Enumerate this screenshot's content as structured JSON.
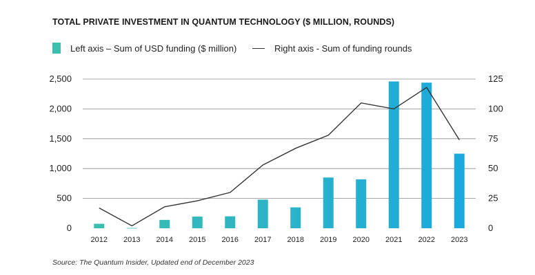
{
  "title": "TOTAL PRIVATE INVESTMENT IN QUANTUM TECHNOLOGY ($ MILLION, ROUNDS)",
  "source": "Source: The Quantum Insider, Updated end of December 2023",
  "legend": {
    "bars_label": "Left axis – Sum of USD funding ($ million)",
    "line_label": "Right axis - Sum of funding rounds"
  },
  "colors": {
    "bar_start": "#3cbfae",
    "bar_end": "#1aa8e0",
    "line": "#333333",
    "grid": "#8a8a8a"
  },
  "chart_data": {
    "type": "bar",
    "categories": [
      "2012",
      "2013",
      "2014",
      "2015",
      "2016",
      "2017",
      "2018",
      "2019",
      "2020",
      "2021",
      "2022",
      "2023"
    ],
    "series": [
      {
        "name": "Left axis – Sum of USD funding ($ million)",
        "axis": "left",
        "type": "bar",
        "values": [
          75,
          5,
          140,
          195,
          200,
          480,
          350,
          850,
          820,
          2460,
          2440,
          1250
        ]
      },
      {
        "name": "Right axis - Sum of funding rounds",
        "axis": "right",
        "type": "line",
        "values": [
          17,
          2,
          18,
          23,
          30,
          53,
          67,
          78,
          105,
          100,
          118,
          74
        ]
      }
    ],
    "left_axis": {
      "ylim": [
        0,
        2500
      ],
      "ticks": [
        0,
        500,
        1000,
        1500,
        2000,
        2500
      ],
      "tick_labels": [
        "0",
        "500",
        "1,000",
        "1,500",
        "2,000",
        "2,500"
      ]
    },
    "right_axis": {
      "ylim": [
        0,
        125
      ],
      "ticks": [
        0,
        25,
        50,
        75,
        100,
        125
      ],
      "tick_labels": [
        "0",
        "25",
        "50",
        "75",
        "100",
        "125"
      ]
    },
    "grid": true,
    "legend_position": "top-left"
  }
}
